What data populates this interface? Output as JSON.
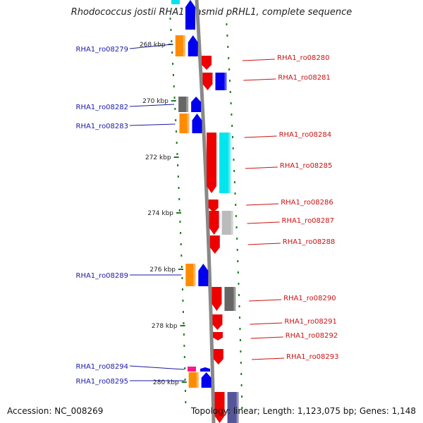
{
  "title": "Rhodococcus jostii RHA1 plasmid pRHL1, complete sequence",
  "footer": {
    "accession": "Accession: NC_008269",
    "summary": "Topology: linear; Length: 1,123,075 bp; Genes: 1,148"
  },
  "colors": {
    "backbone": "#888888",
    "tick": "#1f7a1f",
    "left_label": "#1a1aa8",
    "right_label": "#cc1111",
    "orange": "#ff8c00",
    "blue": "#0000ee",
    "red": "#ee0000",
    "cyan": "#00e5ee",
    "grey": "#666666",
    "lightgrey": "#bbbbbb",
    "pink": "#ff1493",
    "slate": "#555599"
  },
  "scale_labels": [
    "268 kbp",
    "270 kbp",
    "272 kbp",
    "274 kbp",
    "276 kbp",
    "278 kbp",
    "280 kbp"
  ],
  "left_genes": [
    "RHA1_ro08279",
    "RHA1_ro08282",
    "RHA1_ro08283",
    "RHA1_ro08289",
    "RHA1_ro08294",
    "RHA1_ro08295"
  ],
  "right_genes": [
    "RHA1_ro08280",
    "RHA1_ro08281",
    "RHA1_ro08284",
    "RHA1_ro08285",
    "RHA1_ro08286",
    "RHA1_ro08287",
    "RHA1_ro08288",
    "RHA1_ro08290",
    "RHA1_ro08291",
    "RHA1_ro08292",
    "RHA1_ro08293"
  ]
}
